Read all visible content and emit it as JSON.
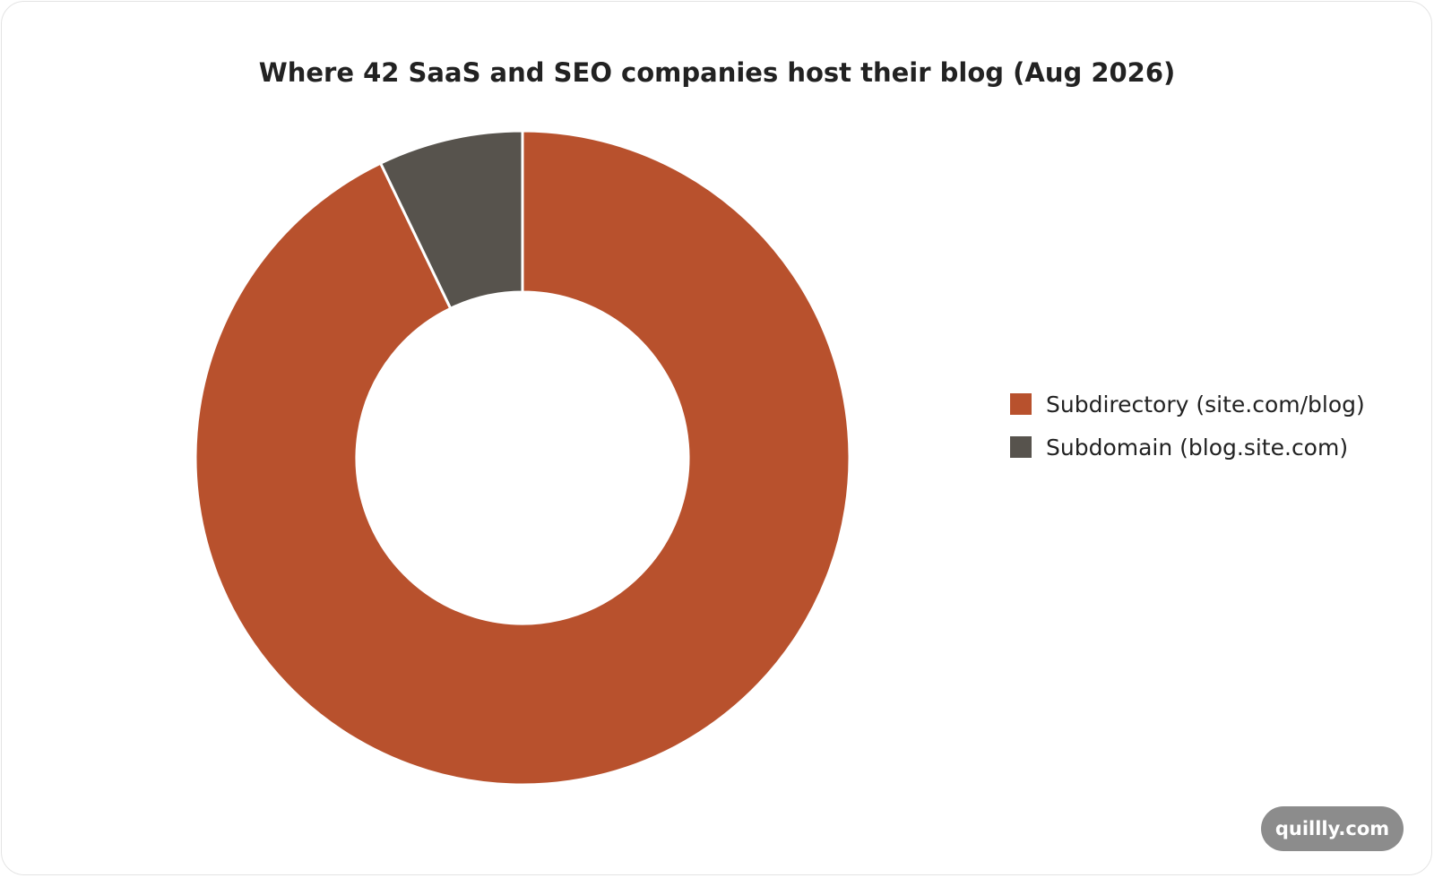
{
  "chart_data": {
    "type": "pie",
    "variant": "donut",
    "title": "Where 42 SaaS and SEO companies host their blog (Aug 2026)",
    "categories": [
      "Subdirectory (site.com/blog)",
      "Subdomain (blog.site.com)"
    ],
    "values": [
      39,
      3
    ],
    "colors": [
      "#b8512d",
      "#57534d"
    ],
    "legend_position": "right"
  },
  "watermark": {
    "text": "quillly.com"
  }
}
